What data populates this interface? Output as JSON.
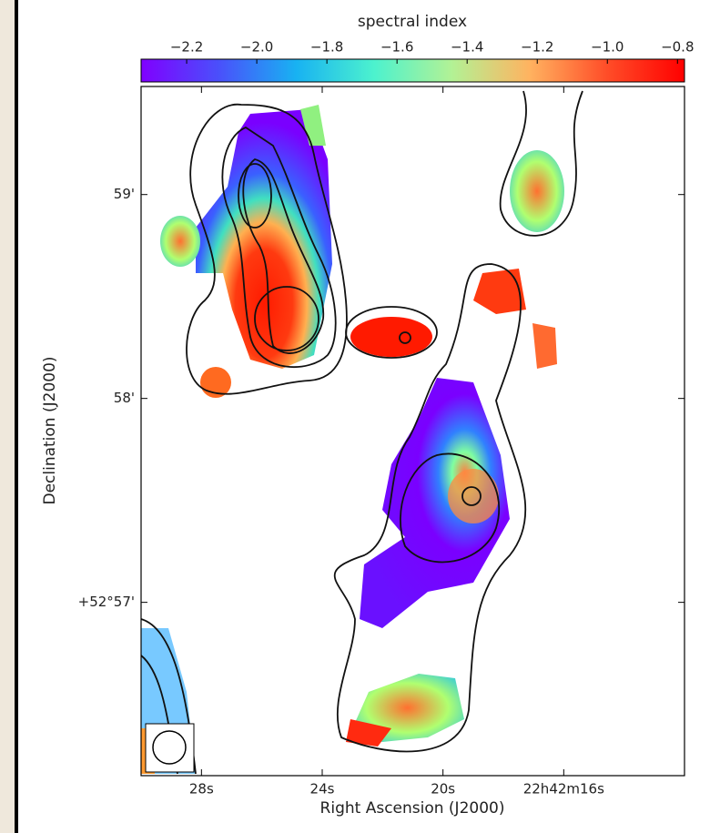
{
  "chart_data": {
    "type": "image",
    "colorbar": {
      "label": "spectral index",
      "lim": [
        -2.33,
        -0.78
      ],
      "colormap": "rainbow",
      "ticks": [
        {
          "value": -2.2,
          "label": "−2.2"
        },
        {
          "value": -2.0,
          "label": "−2.0"
        },
        {
          "value": -1.8,
          "label": "−1.8"
        },
        {
          "value": -1.6,
          "label": "−1.6"
        },
        {
          "value": -1.4,
          "label": "−1.4"
        },
        {
          "value": -1.2,
          "label": "−1.2"
        },
        {
          "value": -1.0,
          "label": "−1.0"
        },
        {
          "value": -0.8,
          "label": "−0.8"
        }
      ]
    },
    "xlabel": "Right Ascension (J2000)",
    "ylabel": "Declination (J2000)",
    "xlim": [
      30.0,
      12.0
    ],
    "xticks": [
      {
        "value": 28,
        "label": "28s"
      },
      {
        "value": 24,
        "label": "24s"
      },
      {
        "value": 20,
        "label": "20s"
      },
      {
        "value": 16,
        "label": "22h42m16s"
      }
    ],
    "ylim": [
      56.15,
      59.53
    ],
    "yticks": [
      {
        "value": 59,
        "label": "59'"
      },
      {
        "value": 58,
        "label": "58'"
      },
      {
        "value": 57,
        "label": "+52°57'"
      }
    ]
  }
}
